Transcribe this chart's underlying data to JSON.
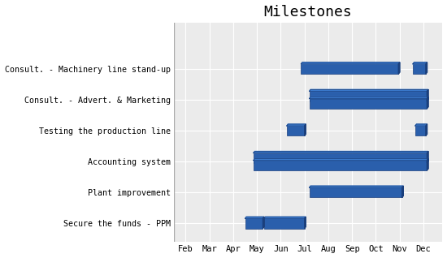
{
  "title": "Milestones",
  "title_fontsize": 13,
  "background_color": "#ffffff",
  "plot_bg_color": "#ebebeb",
  "bar_color": "#2a5fac",
  "bar_dark_color": "#1a3f7c",
  "bar_light_color": "#3a79cc",
  "months": [
    "Feb",
    "Mar",
    "Apr",
    "May",
    "Jun",
    "Jul",
    "Aug",
    "Sep",
    "Oct",
    "Nov",
    "Dec"
  ],
  "month_nums": [
    2,
    3,
    4,
    5,
    6,
    7,
    8,
    9,
    10,
    11,
    12
  ],
  "tasks": [
    "Secure the funds - PPM",
    "Plant improvement",
    "Accounting system",
    "Testing the production line",
    "Consult. - Advert. & Marketing",
    "Consult. - Machinery line stand-up"
  ],
  "bars": [
    [
      {
        "start": 4.5,
        "duration": 0.75,
        "row": 0
      },
      {
        "start": 5.3,
        "duration": 1.7,
        "row": 1
      }
    ],
    [
      {
        "start": 7.2,
        "duration": 3.9,
        "row": 0
      }
    ],
    [
      {
        "start": 4.85,
        "duration": 7.3,
        "row": 1
      },
      {
        "start": 4.85,
        "duration": 7.3,
        "row": 0
      }
    ],
    [
      {
        "start": 6.25,
        "duration": 0.75,
        "row": 0
      },
      {
        "start": 11.65,
        "duration": 0.45,
        "row": 0
      }
    ],
    [
      {
        "start": 7.2,
        "duration": 4.95,
        "row": 1
      },
      {
        "start": 7.2,
        "duration": 4.95,
        "row": 0
      }
    ],
    [
      {
        "start": 6.85,
        "duration": 4.1,
        "row": 0
      },
      {
        "start": 11.55,
        "duration": 0.55,
        "row": 0
      }
    ]
  ],
  "xlim": [
    1.5,
    12.8
  ],
  "ylim": [
    -0.6,
    6.5
  ]
}
